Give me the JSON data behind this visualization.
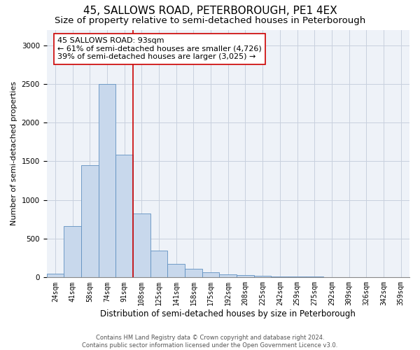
{
  "title": "45, SALLOWS ROAD, PETERBOROUGH, PE1 4EX",
  "subtitle": "Size of property relative to semi-detached houses in Peterborough",
  "xlabel": "Distribution of semi-detached houses by size in Peterborough",
  "ylabel": "Number of semi-detached properties",
  "bar_color": "#c8d8ec",
  "bar_edge_color": "#6090c0",
  "annotation_line_color": "#cc0000",
  "annotation_box_color": "#cc0000",
  "annotation_text": "45 SALLOWS ROAD: 93sqm\n← 61% of semi-detached houses are smaller (4,726)\n39% of semi-detached houses are larger (3,025) →",
  "categories": [
    "24sqm",
    "41sqm",
    "58sqm",
    "74sqm",
    "91sqm",
    "108sqm",
    "125sqm",
    "141sqm",
    "158sqm",
    "175sqm",
    "192sqm",
    "208sqm",
    "225sqm",
    "242sqm",
    "259sqm",
    "275sqm",
    "292sqm",
    "309sqm",
    "326sqm",
    "342sqm",
    "359sqm"
  ],
  "values": [
    50,
    660,
    1450,
    2500,
    1590,
    830,
    350,
    175,
    115,
    65,
    40,
    30,
    20,
    15,
    10,
    8,
    5,
    4,
    3,
    2,
    1
  ],
  "red_line_x": 4.5,
  "ylim": [
    0,
    3200
  ],
  "yticks": [
    0,
    500,
    1000,
    1500,
    2000,
    2500,
    3000
  ],
  "footer1": "Contains HM Land Registry data © Crown copyright and database right 2024.",
  "footer2": "Contains public sector information licensed under the Open Government Licence v3.0.",
  "background_color": "#eef2f8",
  "grid_color": "#c8d0de",
  "title_fontsize": 11,
  "subtitle_fontsize": 9.5,
  "tick_label_fontsize": 7,
  "axis_label_fontsize": 8.5,
  "ylabel_fontsize": 8,
  "annotation_fontsize": 8,
  "footer_fontsize": 6
}
